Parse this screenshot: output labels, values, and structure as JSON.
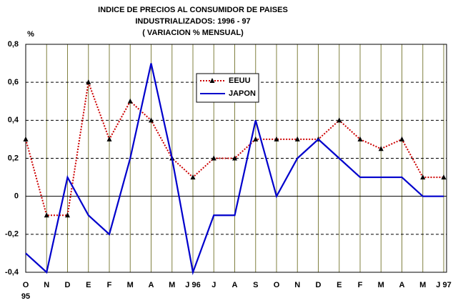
{
  "chart_data": {
    "type": "line",
    "title": [
      "INDICE DE PRECIOS AL CONSUMIDOR DE PAISES",
      "INDUSTRIALIZADOS: 1996 - 97",
      "( VARIACION % MENSUAL)"
    ],
    "y_unit": "%",
    "categories": [
      "O",
      "N",
      "D",
      "E",
      "F",
      "M",
      "A",
      "M",
      "J 96",
      "J",
      "A",
      "S",
      "O",
      "N",
      "D",
      "E",
      "F",
      "M",
      "A",
      "M",
      "J 97"
    ],
    "year_note": "95",
    "series": [
      {
        "name": "EEUU",
        "color": "#cc0000",
        "marker": "triangle",
        "dashed": true,
        "values": [
          0.3,
          -0.1,
          -0.1,
          0.6,
          0.3,
          0.5,
          0.4,
          0.2,
          0.1,
          0.2,
          0.2,
          0.3,
          0.3,
          0.3,
          0.3,
          0.4,
          0.3,
          0.25,
          0.3,
          0.1,
          0.1
        ]
      },
      {
        "name": "JAPON",
        "color": "#0000cc",
        "marker": null,
        "dashed": false,
        "values": [
          -0.3,
          -0.4,
          0.1,
          -0.1,
          -0.2,
          0.2,
          0.7,
          0.2,
          -0.4,
          -0.1,
          -0.1,
          0.4,
          0,
          0.2,
          0.3,
          0.2,
          0.1,
          0.1,
          0.1,
          0,
          0
        ]
      }
    ],
    "ylim": [
      -0.4,
      0.8
    ],
    "yticks": [
      {
        "value": -0.4,
        "label": "-0,4"
      },
      {
        "value": -0.2,
        "label": "-0,2"
      },
      0,
      {
        "value": 0.2,
        "label": "0,2"
      },
      {
        "value": 0.4,
        "label": "0,4"
      },
      {
        "value": 0.6,
        "label": "0,6"
      },
      {
        "value": 0.8,
        "label": "0,8"
      }
    ],
    "grid": true
  }
}
